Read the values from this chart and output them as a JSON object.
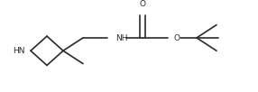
{
  "bg_color": "#ffffff",
  "line_color": "#2a2a2a",
  "line_width": 1.2,
  "text_color": "#2a2a2a",
  "font_size": 6.5,
  "figsize": [
    2.86,
    1.02
  ],
  "dpi": 100,
  "xlim": [
    0,
    286
  ],
  "ylim": [
    0,
    102
  ]
}
